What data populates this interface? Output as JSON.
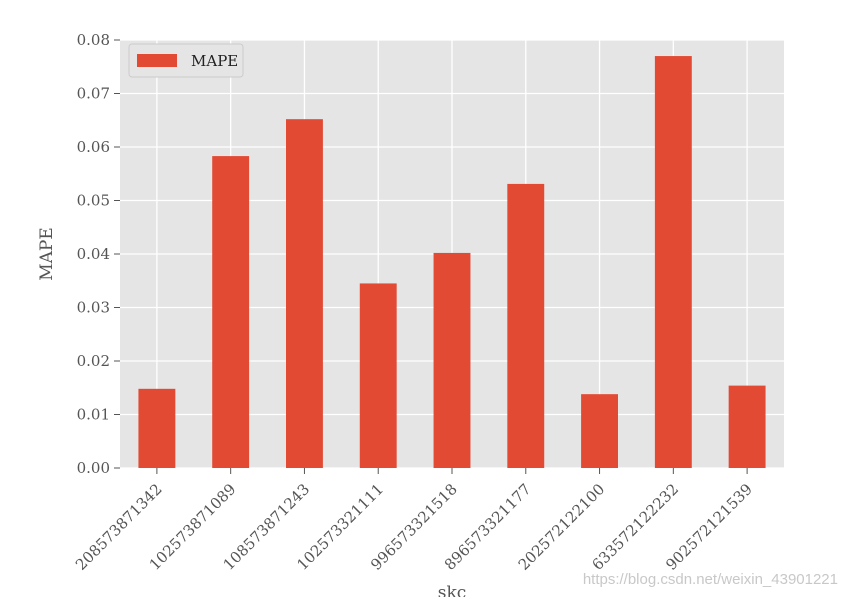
{
  "chart_data": {
    "type": "bar",
    "xlabel": "skc",
    "ylabel": "MAPE",
    "ylim": [
      0,
      0.08
    ],
    "yticks": [
      "0.00",
      "0.01",
      "0.02",
      "0.03",
      "0.04",
      "0.05",
      "0.06",
      "0.07",
      "0.08"
    ],
    "grid": true,
    "legend_position": "top-left",
    "categories": [
      "208573871342",
      "102573871089",
      "108573871243",
      "102573321111",
      "996573321518",
      "896573321177",
      "202572122100",
      "633572122232",
      "902572121539"
    ],
    "series": [
      {
        "name": "MAPE",
        "color": "#E24A33",
        "values": [
          0.0148,
          0.0583,
          0.0652,
          0.0345,
          0.0402,
          0.0531,
          0.0138,
          0.077,
          0.0154
        ]
      }
    ]
  },
  "watermark": "https://blog.csdn.net/weixin_43901221"
}
